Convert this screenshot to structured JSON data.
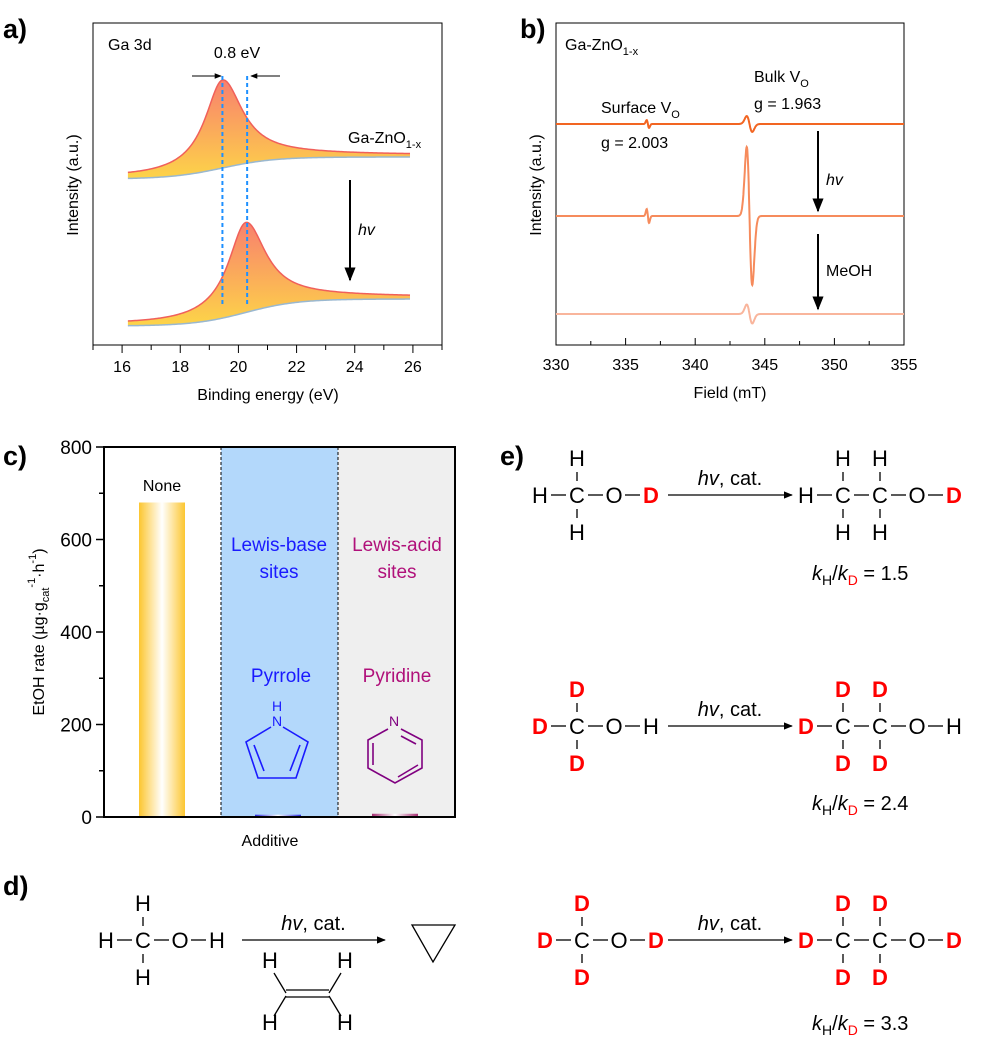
{
  "panels": {
    "a": "a)",
    "b": "b)",
    "c": "c)",
    "d": "d)",
    "e": "e)"
  },
  "chart_data": [
    {
      "panel": "a",
      "type": "line",
      "xlabel": "Binding energy (eV)",
      "ylabel": "Intensity (a.u.)",
      "xlim": [
        15,
        27
      ],
      "xticks": [
        "16",
        "18",
        "20",
        "22",
        "24",
        "26"
      ],
      "annotations": {
        "core_level": "Ga 3d",
        "shift": "0.8 eV",
        "sample": "Ga-ZnO",
        "sample_sub": "1-x",
        "arrow": "hv"
      },
      "series": [
        {
          "peak_eV": 19.45,
          "relative_intensity": 1.0
        },
        {
          "peak_eV": 20.25,
          "relative_intensity": 1.0
        }
      ],
      "colors": {
        "outline": "#f0605a",
        "fill_top": "#f8806e",
        "fill_bottom": "#fdd548",
        "background": "#9ab8d0",
        "marker": "#1e90ff"
      }
    },
    {
      "panel": "b",
      "type": "line",
      "xlabel": "Field (mT)",
      "ylabel": "Intensity (a.u.)",
      "xlim": [
        330,
        355
      ],
      "xticks": [
        "330",
        "335",
        "340",
        "345",
        "350",
        "355"
      ],
      "annotations": {
        "sample": "Ga-ZnO",
        "sample_sub": "1-x",
        "surface": "Surface V",
        "surface_sub": "O",
        "surface_g": "g = 2.003",
        "bulk": "Bulk V",
        "bulk_sub": "O",
        "bulk_g": "g = 1.963",
        "arrow1": "hv",
        "arrow2": "MeOH"
      },
      "signals": {
        "surface_mT": 336.6,
        "bulk_mT": 343.9
      },
      "series": [
        {
          "surface_amp": 0.5,
          "bulk_amp": 1.0,
          "color": "#f26522"
        },
        {
          "surface_amp": 1.0,
          "bulk_amp": 10.0,
          "color": "#f68b5c"
        },
        {
          "surface_amp": 0.0,
          "bulk_amp": 1.2,
          "color": "#f9b59c"
        }
      ]
    },
    {
      "panel": "c",
      "type": "bar",
      "xlabel": "Additive",
      "ylabel": "EtOH rate (µg·g",
      "ylabel_sub": "cat",
      "ylabel_sup1": "-1",
      "ylabel_mid": "·h",
      "ylabel_sup2": "-1",
      "ylabel_end": ")",
      "ylim": [
        0,
        800
      ],
      "yticks": [
        "0",
        "200",
        "400",
        "600",
        "800"
      ],
      "categories": [
        "None",
        "Pyrrole",
        "Pyridine"
      ],
      "values": [
        680,
        5,
        7
      ],
      "groups": [
        {
          "label1": "Lewis-base",
          "label2": "sites",
          "color": "#1a1aff",
          "bg": "#b3d8fb"
        },
        {
          "label1": "Lewis-acid",
          "label2": "sites",
          "color": "#b0107a",
          "bg": "#efefef"
        }
      ],
      "bar_colors": [
        "#fcc630",
        "#2a2ae0",
        "#a83074"
      ],
      "structures": {
        "pyrrole_n": "N",
        "pyrrole_h": "H",
        "pyridine_n": "N",
        "pyrrole_color": "#1a1aff",
        "pyridine_color": "#800080"
      }
    }
  ],
  "scheme_d": {
    "reactant": {
      "left": "H",
      "carbons": [
        {
          "top": "H",
          "bottom": "H"
        }
      ],
      "chain": [
        "O",
        "H"
      ]
    },
    "cond_italic": "hv",
    "cond_rest": ", cat.",
    "ethylene": [
      "H",
      "H",
      "H",
      "H"
    ]
  },
  "scheme_e": [
    {
      "reactant": {
        "left": "H",
        "carbons": [
          {
            "top": "H",
            "bottom": "H"
          }
        ],
        "chain": [
          "O",
          "D"
        ]
      },
      "product": {
        "left": "H",
        "carbons": [
          {
            "top": "H",
            "bottom": "H"
          },
          {
            "top": "H",
            "bottom": "H"
          }
        ],
        "chain": [
          "O",
          "D"
        ]
      },
      "cond_italic": "hv",
      "cond_rest": ", cat.",
      "kie": {
        "k": "k",
        "sub_num": "H",
        "slash": "/",
        "sub_den": "D",
        "value": " = 1.5"
      }
    },
    {
      "reactant": {
        "left": "D",
        "carbons": [
          {
            "top": "D",
            "bottom": "D"
          }
        ],
        "chain": [
          "O",
          "H"
        ]
      },
      "product": {
        "left": "D",
        "carbons": [
          {
            "top": "D",
            "bottom": "D"
          },
          {
            "top": "D",
            "bottom": "D"
          }
        ],
        "chain": [
          "O",
          "H"
        ]
      },
      "cond_italic": "hv",
      "cond_rest": ", cat.",
      "kie": {
        "k": "k",
        "sub_num": "H",
        "slash": "/",
        "sub_den": "D",
        "value": " = 2.4"
      }
    },
    {
      "reactant": {
        "left": "D",
        "carbons": [
          {
            "top": "D",
            "bottom": "D"
          }
        ],
        "chain": [
          "O",
          "D"
        ]
      },
      "product": {
        "left": "D",
        "carbons": [
          {
            "top": "D",
            "bottom": "D"
          },
          {
            "top": "D",
            "bottom": "D"
          }
        ],
        "chain": [
          "O",
          "D"
        ]
      },
      "cond_italic": "hv",
      "cond_rest": ", cat.",
      "kie": {
        "k": "k",
        "sub_num": "H",
        "slash": "/",
        "sub_den": "D",
        "value": " = 3.3"
      }
    }
  ],
  "colors": {
    "deuterium": "#ff0000",
    "text": "#000000"
  }
}
